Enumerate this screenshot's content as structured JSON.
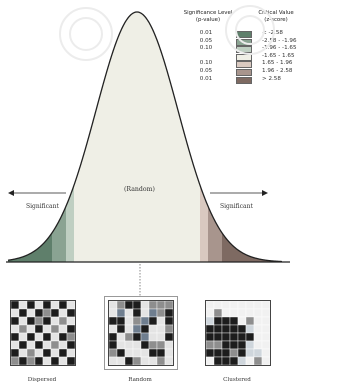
{
  "legend": {
    "header_p": [
      "Significance Level",
      "(p-value)"
    ],
    "header_z": [
      "Critical Value",
      "(z-score)"
    ],
    "rows": [
      {
        "p": "0.01",
        "z": "< -2.58",
        "color": "#5f7f6b"
      },
      {
        "p": "0.05",
        "z": "-2.58 - -1.96",
        "color": "#8aa392"
      },
      {
        "p": "0.10",
        "z": "-1.96 - -1.65",
        "color": "#bfcfc2"
      },
      {
        "p": "",
        "z": "-1.65 - 1.65",
        "color": "#efefe6"
      },
      {
        "p": "0.10",
        "z": "1.65 - 1.96",
        "color": "#d9c9c0"
      },
      {
        "p": "0.05",
        "z": "1.96 - 2.58",
        "color": "#a8958d"
      },
      {
        "p": "0.01",
        "z": "> 2.58",
        "color": "#7e6a62"
      }
    ]
  },
  "curve": {
    "center_label": "(Random)",
    "left_label": "Significant",
    "right_label": "Significant"
  },
  "patterns": [
    {
      "label": "Dispersed",
      "kind": "dispersed"
    },
    {
      "label": "Random",
      "kind": "random"
    },
    {
      "label": "Clustered",
      "kind": "clustered"
    }
  ],
  "colors": {
    "curve": "#222222",
    "cold_dark": "#5f7f6b",
    "cold_mid": "#8aa392",
    "cold_light": "#bfcfc2",
    "neutral": "#efefe6",
    "hot_light": "#d9c9c0",
    "hot_mid": "#a8958d",
    "hot_dark": "#7e6a62",
    "watermark": "#e7e7e7"
  }
}
